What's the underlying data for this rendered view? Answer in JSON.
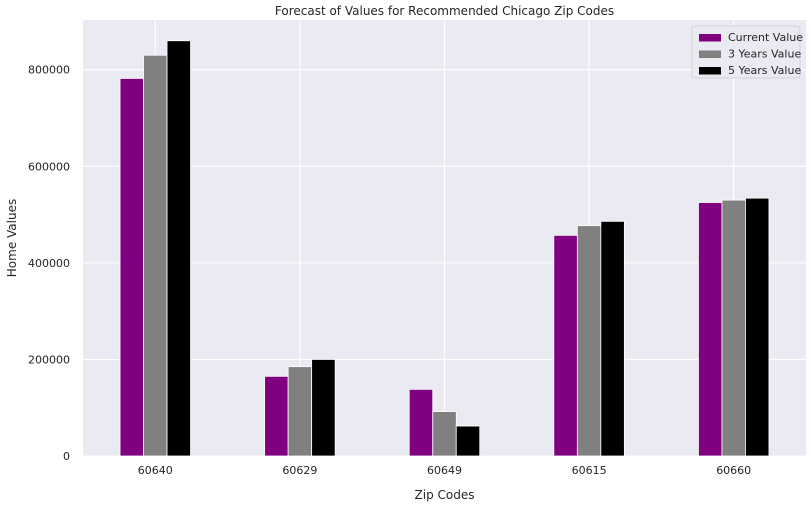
{
  "chart_data": {
    "type": "bar",
    "title": "Forecast of Values for Recommended Chicago Zip Codes",
    "xlabel": "Zip Codes",
    "ylabel": "Home Values",
    "categories": [
      "60640",
      "60629",
      "60649",
      "60615",
      "60660"
    ],
    "series": [
      {
        "name": "Current Value",
        "values": [
          782000,
          165000,
          138000,
          457000,
          525000
        ],
        "color": "#800080"
      },
      {
        "name": "3 Years Value",
        "values": [
          830000,
          185000,
          92000,
          477000,
          530000
        ],
        "color": "#808080"
      },
      {
        "name": "5 Years Value",
        "values": [
          860000,
          200000,
          62000,
          486000,
          534000
        ],
        "color": "#000000"
      }
    ],
    "yticks": [
      0,
      200000,
      400000,
      600000,
      800000
    ],
    "ylim": [
      0,
      903000
    ],
    "grid": true,
    "legend_position": "top-right",
    "colors": {
      "background": "#eaeaf2",
      "grid": "#ffffff",
      "text": "#262626"
    }
  }
}
